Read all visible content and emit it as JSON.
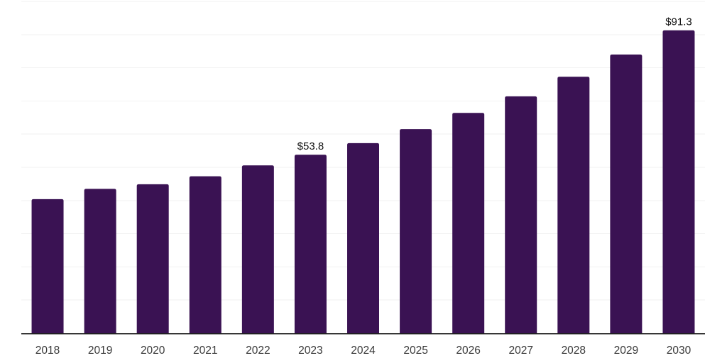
{
  "chart_data": {
    "type": "bar",
    "title": "",
    "xlabel": "",
    "ylabel": "",
    "categories": [
      "2018",
      "2019",
      "2020",
      "2021",
      "2022",
      "2023",
      "2024",
      "2025",
      "2026",
      "2027",
      "2028",
      "2029",
      "2030"
    ],
    "values": [
      40.4,
      43.5,
      44.9,
      47.3,
      50.6,
      53.8,
      57.3,
      61.5,
      66.4,
      71.4,
      77.3,
      84.0,
      91.3
    ],
    "data_labels": {
      "2023": "$53.8",
      "2030": "$91.3"
    },
    "ylim": [
      0,
      100
    ],
    "gridline_step": 10,
    "grid": "horizontal-only",
    "y_axis_labels_visible": false,
    "legend_position": "none",
    "colors": {
      "bar": "#3a1253",
      "gridline": "#f2f2f2",
      "axis_line": "#1f1f1f",
      "data_label_text": "#111111",
      "tick_label_text": "#3a3a3a",
      "background": "#ffffff"
    }
  }
}
